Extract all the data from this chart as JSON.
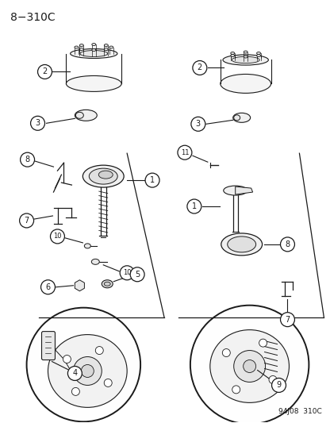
{
  "title": "8−310C",
  "footer": "94J08  310C",
  "bg_color": "#ffffff",
  "line_color": "#1a1a1a",
  "gray_color": "#888888",
  "light_gray": "#cccccc",
  "title_fontsize": 10,
  "footer_fontsize": 6.5,
  "fig_width": 4.16,
  "fig_height": 5.33,
  "dpi": 100
}
